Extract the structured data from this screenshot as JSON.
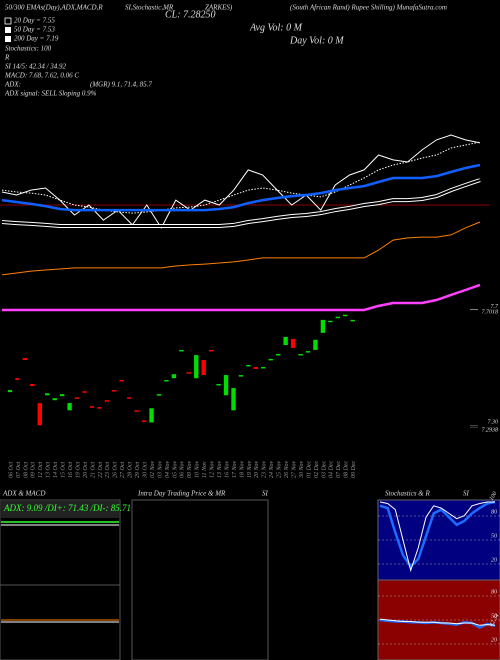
{
  "chart_data": [
    {
      "type": "line",
      "annotations": [
        "50/300  EMAs(Day),ADX,MACD,R",
        "SI,Stochastic,MR",
        "CL: 7.28250",
        "ZARKES)",
        "(South African Rand) Rupee Shilling) MunafaSutra.com",
        "Avg Vol: 0  M",
        "Day Vol: 0  M",
        "20 Day = 7.55",
        "50 Day = 7.53",
        "200 Day = 7.19",
        "Stochastics: 100",
        "R",
        "SI 14/5: 42.34 / 34.92",
        "MACD: 7.68, 7.62, 0.06  C",
        "ADX:",
        "(MGR) 9.1, 71.4, 85.7",
        "ADX  signal: SELL Sloping 0.9%"
      ],
      "ylim": [
        7.05,
        8.05
      ],
      "series": [
        {
          "color": "#ffffff",
          "style": "solid",
          "values": [
            7.487,
            7.476,
            7.494,
            7.502,
            7.457,
            7.402,
            7.439,
            7.383,
            7.42,
            7.365,
            7.439,
            7.354,
            7.457,
            7.42,
            7.457,
            7.439,
            7.494,
            7.569,
            7.55,
            7.494,
            7.439,
            7.476,
            7.42,
            7.513,
            7.55,
            7.569,
            7.624,
            7.606,
            7.598,
            7.643,
            7.68,
            7.698,
            7.68,
            7.669
          ]
        },
        {
          "color": "#ffffff",
          "style": "dotted",
          "values": [
            7.494,
            7.487,
            7.483,
            7.476,
            7.457,
            7.439,
            7.431,
            7.42,
            7.413,
            7.409,
            7.413,
            7.42,
            7.428,
            7.431,
            7.439,
            7.457,
            7.476,
            7.494,
            7.502,
            7.494,
            7.483,
            7.476,
            7.469,
            7.487,
            7.513,
            7.539,
            7.569,
            7.587,
            7.598,
            7.613,
            7.624,
            7.65,
            7.661,
            7.672
          ]
        },
        {
          "color": "#1060ff",
          "style": "thick",
          "values": [
            7.457,
            7.45,
            7.443,
            7.435,
            7.424,
            7.42,
            7.42,
            7.42,
            7.42,
            7.42,
            7.42,
            7.42,
            7.42,
            7.42,
            7.42,
            7.424,
            7.431,
            7.446,
            7.457,
            7.465,
            7.472,
            7.476,
            7.483,
            7.494,
            7.502,
            7.509,
            7.524,
            7.539,
            7.539,
            7.539,
            7.546,
            7.561,
            7.576,
            7.587
          ]
        },
        {
          "color": "#ffffff",
          "style": "double",
          "values": [
            7.376,
            7.372,
            7.369,
            7.365,
            7.361,
            7.361,
            7.361,
            7.361,
            7.361,
            7.361,
            7.361,
            7.361,
            7.361,
            7.361,
            7.361,
            7.361,
            7.365,
            7.376,
            7.383,
            7.391,
            7.398,
            7.402,
            7.409,
            7.42,
            7.428,
            7.439,
            7.446,
            7.457,
            7.457,
            7.461,
            7.472,
            7.494,
            7.513,
            7.531
          ]
        },
        {
          "color": "#ff8000",
          "style": "solid",
          "values": [
            7.18,
            7.187,
            7.194,
            7.198,
            7.202,
            7.206,
            7.206,
            7.206,
            7.206,
            7.206,
            7.206,
            7.206,
            7.213,
            7.217,
            7.22,
            7.224,
            7.228,
            7.235,
            7.243,
            7.243,
            7.243,
            7.243,
            7.243,
            7.243,
            7.243,
            7.243,
            7.272,
            7.309,
            7.317,
            7.32,
            7.32,
            7.328,
            7.354,
            7.376
          ]
        },
        {
          "color": "#ff40ff",
          "style": "thick",
          "values": [
            7.05,
            7.05,
            7.05,
            7.05,
            7.05,
            7.05,
            7.05,
            7.05,
            7.05,
            7.05,
            7.05,
            7.05,
            7.05,
            7.05,
            7.05,
            7.05,
            7.05,
            7.05,
            7.05,
            7.05,
            7.05,
            7.05,
            7.05,
            7.05,
            7.05,
            7.05,
            7.065,
            7.076,
            7.076,
            7.076,
            7.087,
            7.106,
            7.124,
            7.143
          ]
        }
      ]
    },
    {
      "type": "candlestick",
      "categories": [
        "06 Oct",
        "07 Oct",
        "08 Oct",
        "09 Oct",
        "12 Oct",
        "13 Oct",
        "14 Oct",
        "15 Oct",
        "16 Oct",
        "19 Oct",
        "20 Oct",
        "21 Oct",
        "22 Oct",
        "23 Oct",
        "26 Oct",
        "27 Oct",
        "28 Oct",
        "29 Oct",
        "30 Oct",
        "02 Nov",
        "03 Nov",
        "04 Nov",
        "05 Nov",
        "06 Nov",
        "09 Nov",
        "10 Nov",
        "11 Nov",
        "12 Nov",
        "13 Nov",
        "16 Nov",
        "17 Nov",
        "18 Nov",
        "19 Nov",
        "20 Nov",
        "23 Nov",
        "24 Nov",
        "25 Nov",
        "26 Nov",
        "27 Nov",
        "30 Nov",
        "01 Dec",
        "02 Dec",
        "03 Dec",
        "04 Dec",
        "07 Dec",
        "08 Dec",
        "09 Dec"
      ],
      "open": [
        7.415,
        7.463,
        7.533,
        7.443,
        7.377,
        7.404,
        7.387,
        7.401,
        7.352,
        7.397,
        7.418,
        7.366,
        7.363,
        7.387,
        7.422,
        7.457,
        7.397,
        7.352,
        7.317,
        7.31,
        7.404,
        7.453,
        7.463,
        7.557,
        7.484,
        7.463,
        7.526,
        7.561,
        7.439,
        7.404,
        7.352,
        7.47,
        7.505,
        7.502,
        7.498,
        7.526,
        7.543,
        7.578,
        7.599,
        7.543,
        7.554,
        7.561,
        7.62,
        7.658,
        7.672,
        7.679,
        7.662
      ],
      "close": [
        7.422,
        7.457,
        7.526,
        7.436,
        7.3,
        7.411,
        7.394,
        7.408,
        7.377,
        7.394,
        7.415,
        7.363,
        7.359,
        7.384,
        7.418,
        7.453,
        7.394,
        7.349,
        7.314,
        7.359,
        7.408,
        7.457,
        7.477,
        7.561,
        7.481,
        7.543,
        7.474,
        7.557,
        7.443,
        7.474,
        7.429,
        7.474,
        7.509,
        7.495,
        7.502,
        7.53,
        7.547,
        7.606,
        7.568,
        7.547,
        7.557,
        7.596,
        7.665,
        7.662,
        7.676,
        7.683,
        7.665
      ],
      "up_color": "#00dd00",
      "down_color": "#ff0000",
      "ylim": [
        7.27,
        7.72
      ],
      "yticks": [
        7.7,
        7.7018,
        {
          "value": 7.3,
          "label": "7.30"
        },
        7.2938
      ]
    },
    {
      "type": "line",
      "title": "Stochastics & R",
      "subtitle": "SI",
      "background": "#000080",
      "ylim": [
        0,
        100
      ],
      "yticks": [
        20,
        50,
        80
      ],
      "series": [
        {
          "color": "#1e6cff",
          "style": "thick",
          "values": [
            95,
            92,
            60,
            30,
            15,
            25,
            55,
            85,
            90,
            80,
            70,
            75,
            85,
            92,
            98,
            100
          ]
        },
        {
          "color": "#ffffff",
          "style": "solid",
          "values": [
            100,
            98,
            90,
            50,
            10,
            40,
            80,
            95,
            92,
            85,
            78,
            82,
            95,
            98,
            100,
            100
          ]
        }
      ]
    },
    {
      "type": "line",
      "background": "#8b0000",
      "ylim": [
        0,
        100
      ],
      "yticks": [
        20,
        50,
        80
      ],
      "series": [
        {
          "color": "#1e6cff",
          "style": "thick",
          "values": [
            50,
            49,
            48,
            48,
            47,
            47,
            46,
            47,
            46,
            45,
            44,
            47,
            46,
            40,
            45,
            42.34
          ]
        },
        {
          "color": "#ffffff",
          "style": "solid",
          "values": [
            51,
            50,
            49,
            48,
            48,
            47,
            47,
            47,
            46,
            46,
            45,
            46,
            46,
            43,
            44,
            43
          ]
        }
      ]
    }
  ],
  "adx_panel": {
    "title": "ADX  & MACD",
    "stats": "ADX: 9.09 /DI+: 71.43 /DI-: 85.71"
  },
  "intraday_panel": {
    "title": "Intra Day Trading Price  & MR",
    "subtitle": "SI"
  }
}
